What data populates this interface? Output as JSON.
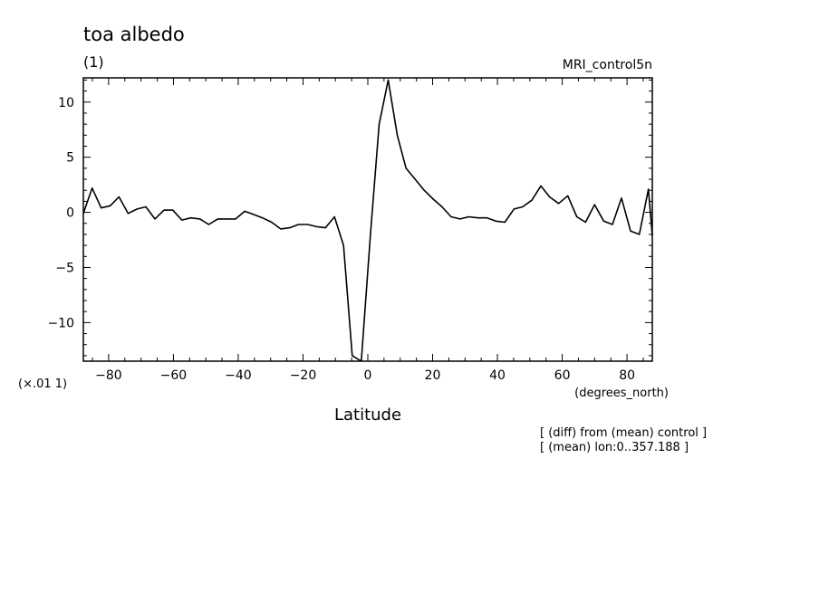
{
  "chart_data": {
    "type": "line",
    "title": "toa albedo",
    "subtitle": "(1)",
    "dataset_label": "MRI_control5n",
    "xlabel": "Latitude",
    "xunits": "(degrees_north)",
    "yscale_label": "(×.01 1)",
    "notes": [
      "[ (diff) from (mean) control ]",
      "[ (mean) lon:0..357.188 ]"
    ],
    "xlim": [
      -87.8,
      87.8
    ],
    "ylim": [
      -13.5,
      12.2
    ],
    "xticks": [
      -80,
      -60,
      -40,
      -20,
      0,
      20,
      40,
      60,
      80
    ],
    "xtick_labels": [
      "−80",
      "−60",
      "−40",
      "−20",
      "0",
      "20",
      "40",
      "60",
      "80"
    ],
    "yticks": [
      10,
      5,
      0,
      -5,
      -10
    ],
    "ytick_labels": [
      "10",
      "5",
      "0",
      "−5",
      "−10"
    ],
    "grid": false,
    "series": [
      {
        "x": [
          -87.8,
          -85.1,
          -82.3,
          -79.5,
          -76.8,
          -74.0,
          -71.2,
          -68.5,
          -65.7,
          -62.9,
          -60.2,
          -57.4,
          -54.6,
          -51.8,
          -49.1,
          -46.3,
          -43.5,
          -40.8,
          -38.0,
          -35.2,
          -32.5,
          -29.7,
          -26.9,
          -24.1,
          -21.4,
          -18.6,
          -15.8,
          -13.1,
          -10.3,
          -7.5,
          -4.8,
          -2.0,
          0.8,
          3.5,
          6.3,
          9.1,
          11.8,
          14.6,
          17.4,
          20.2,
          22.9,
          25.7,
          28.5,
          31.2,
          34.0,
          36.8,
          39.5,
          42.3,
          45.1,
          47.8,
          50.6,
          53.4,
          56.1,
          58.9,
          61.7,
          64.5,
          67.2,
          70.0,
          72.8,
          75.5,
          78.3,
          81.1,
          83.8,
          86.6,
          87.8
        ],
        "values": [
          -0.1,
          2.2,
          0.4,
          0.6,
          1.4,
          -0.1,
          0.3,
          0.5,
          -0.6,
          0.2,
          0.2,
          -0.7,
          -0.5,
          -0.6,
          -1.1,
          -0.6,
          -0.6,
          -0.6,
          0.1,
          -0.2,
          -0.5,
          -0.9,
          -1.5,
          -1.4,
          -1.1,
          -1.1,
          -1.3,
          -1.4,
          -0.4,
          -3.0,
          -13.0,
          -13.6,
          -2.0,
          8.0,
          12.0,
          7.0,
          4.0,
          3.0,
          2.0,
          1.2,
          0.5,
          -0.4,
          -0.6,
          -0.4,
          -0.5,
          -0.5,
          -0.8,
          -0.9,
          0.3,
          0.5,
          1.1,
          2.4,
          1.4,
          0.8,
          1.5,
          -0.4,
          -0.9,
          0.7,
          -0.8,
          -1.1,
          1.3,
          -1.7,
          -2.0,
          2.1,
          -2.1
        ]
      }
    ]
  }
}
